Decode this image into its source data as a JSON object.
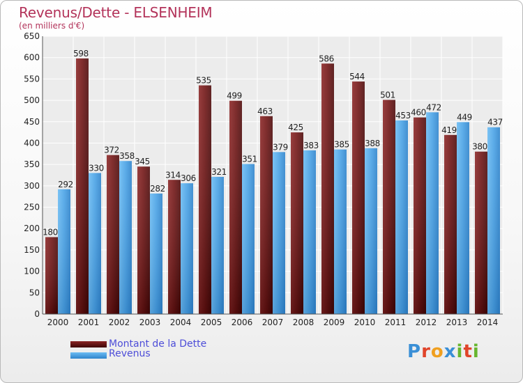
{
  "chart_data": {
    "type": "bar",
    "title": "Revenus/Dette - ELSENHEIM",
    "subtitle": "(en milliers d'€)",
    "categories": [
      "2000",
      "2001",
      "2002",
      "2003",
      "2004",
      "2005",
      "2006",
      "2007",
      "2008",
      "2009",
      "2010",
      "2011",
      "2012",
      "2013",
      "2014"
    ],
    "series": [
      {
        "name": "Montant de la Dette",
        "color": "#7d1a1a",
        "values": [
          180,
          598,
          372,
          345,
          314,
          535,
          499,
          463,
          425,
          586,
          544,
          501,
          460,
          419,
          380
        ]
      },
      {
        "name": "Revenus",
        "color": "#4aa3e6",
        "values": [
          292,
          330,
          358,
          282,
          306,
          321,
          351,
          379,
          383,
          385,
          388,
          453,
          472,
          449,
          437
        ]
      }
    ],
    "yticks": [
      0,
      50,
      100,
      150,
      200,
      250,
      300,
      350,
      400,
      450,
      500,
      550,
      600,
      650
    ],
    "ylim": [
      0,
      650
    ],
    "grid": true,
    "legend_position": "bottom-left",
    "brand": "Proxiti"
  }
}
